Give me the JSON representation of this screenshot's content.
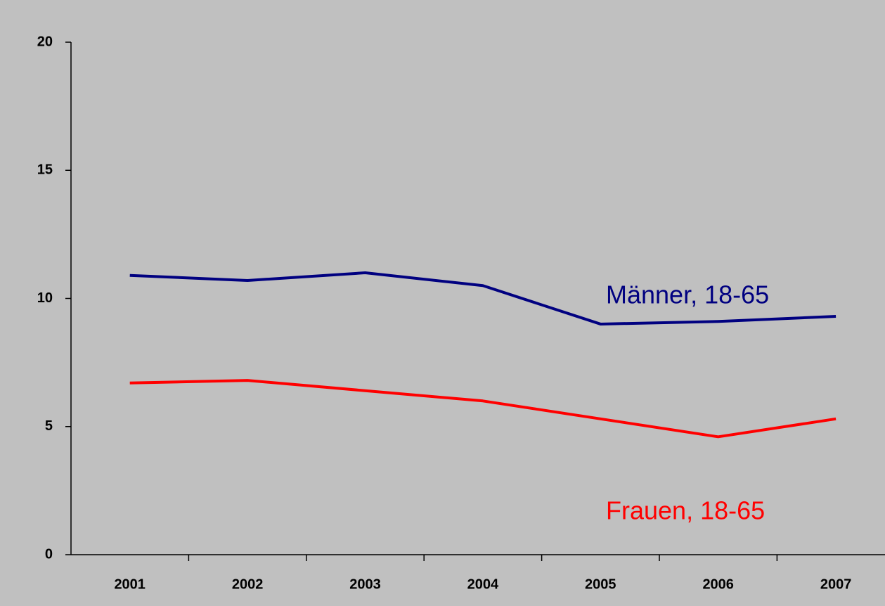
{
  "chart_data": {
    "type": "line",
    "categories": [
      "2001",
      "2002",
      "2003",
      "2004",
      "2005",
      "2006",
      "2007"
    ],
    "series": [
      {
        "name": "Männer, 18-65",
        "color": "#000080",
        "values": [
          10.9,
          10.7,
          11.0,
          10.5,
          9.0,
          9.1,
          9.3
        ]
      },
      {
        "name": "Frauen, 18-65",
        "color": "#ff0000",
        "values": [
          6.7,
          6.8,
          6.4,
          6.0,
          5.3,
          4.6,
          5.3
        ]
      }
    ],
    "ylim": [
      0,
      20
    ],
    "yticks": [
      0,
      5,
      10,
      15,
      20
    ],
    "grid": false
  }
}
